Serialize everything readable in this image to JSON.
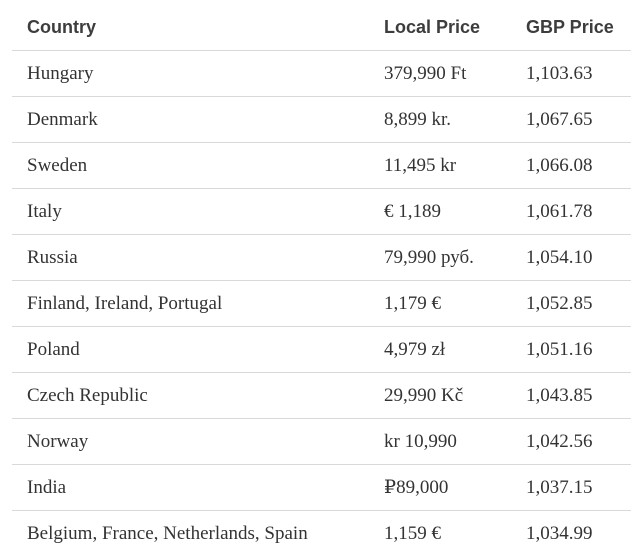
{
  "table": {
    "headers": {
      "country": "Country",
      "local_price": "Local Price",
      "gbp_price": "GBP Price"
    },
    "rows": [
      {
        "country": "Hungary",
        "local_price": "379,990 Ft",
        "gbp_price": "1,103.63"
      },
      {
        "country": "Denmark",
        "local_price": "8,899 kr.",
        "gbp_price": "1,067.65"
      },
      {
        "country": "Sweden",
        "local_price": "11,495 kr",
        "gbp_price": "1,066.08"
      },
      {
        "country": "Italy",
        "local_price": "€ 1,189",
        "gbp_price": "1,061.78"
      },
      {
        "country": "Russia",
        "local_price": "79,990 руб.",
        "gbp_price": "1,054.10"
      },
      {
        "country": "Finland, Ireland, Portugal",
        "local_price": "1,179 €",
        "gbp_price": "1,052.85"
      },
      {
        "country": "Poland",
        "local_price": "4,979 zł",
        "gbp_price": "1,051.16"
      },
      {
        "country": "Czech Republic",
        "local_price": "29,990 Kč",
        "gbp_price": "1,043.85"
      },
      {
        "country": "Norway",
        "local_price": "kr 10,990",
        "gbp_price": "1,042.56"
      },
      {
        "country": "India",
        "local_price": "₽89,000",
        "gbp_price": "1,037.15"
      },
      {
        "country": "Belgium, France, Netherlands, Spain",
        "local_price": "1,159 €",
        "gbp_price": "1,034.99"
      }
    ]
  }
}
